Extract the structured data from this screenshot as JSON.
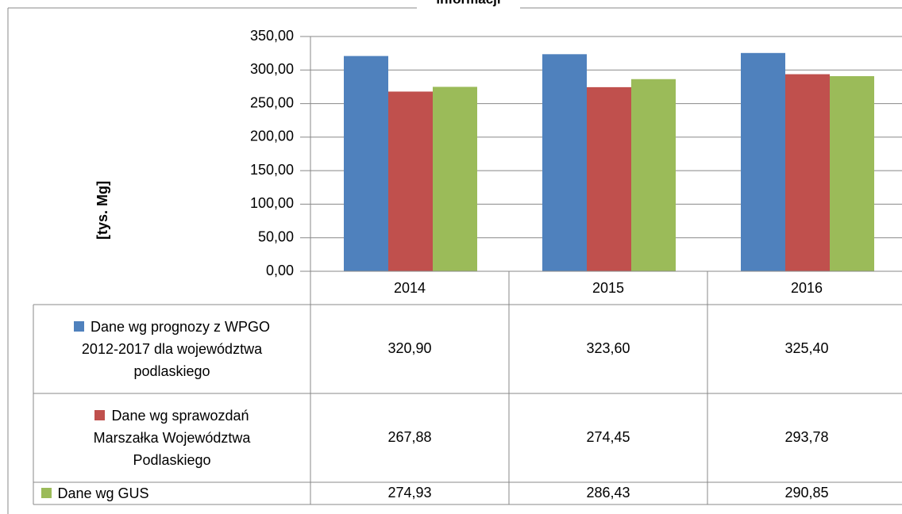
{
  "chart_data": {
    "type": "bar",
    "title": "informacji",
    "y_label": "[tys. Mg]",
    "categories": [
      "2014",
      "2015",
      "2016"
    ],
    "series": [
      {
        "name": "Dane wg prognozy z WPGO 2012-2017 dla województwa podlaskiego",
        "color": "#4f81bd",
        "values": [
          320.9,
          323.6,
          325.4
        ],
        "value_labels": [
          "320,90",
          "323,60",
          "325,40"
        ]
      },
      {
        "name": "Dane wg sprawozdań Marszałka Województwa Podlaskiego",
        "color": "#c0504d",
        "values": [
          267.88,
          274.45,
          293.78
        ],
        "value_labels": [
          "267,88",
          "274,45",
          "293,78"
        ]
      },
      {
        "name": "Dane wg GUS",
        "color": "#9bbb59",
        "values": [
          274.93,
          286.43,
          290.85
        ],
        "value_labels": [
          "274,93",
          "286,43",
          "290,85"
        ]
      }
    ],
    "ylim": [
      0,
      350
    ],
    "yticks": [
      {
        "value": 0,
        "label": "0,00"
      },
      {
        "value": 50,
        "label": "50,00"
      },
      {
        "value": 100,
        "label": "100,00"
      },
      {
        "value": 150,
        "label": "150,00"
      },
      {
        "value": 200,
        "label": "200,00"
      },
      {
        "value": 250,
        "label": "250,00"
      },
      {
        "value": 300,
        "label": "300,00"
      },
      {
        "value": 350,
        "label": "350,00"
      }
    ],
    "grid": true
  }
}
